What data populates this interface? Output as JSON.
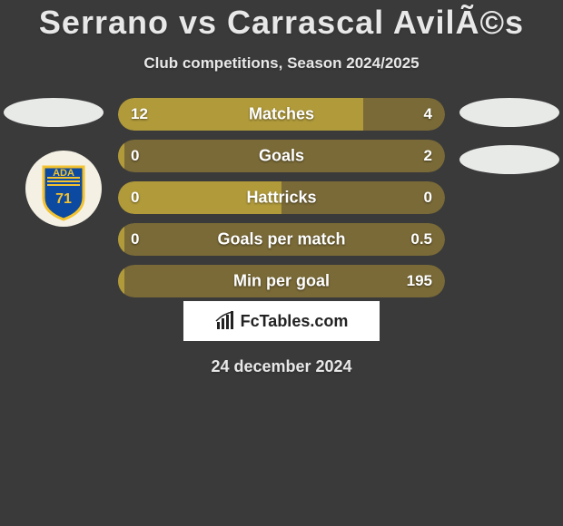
{
  "title": "Serrano vs Carrascal AvilÃ©s",
  "subtitle": "Club competitions, Season 2024/2025",
  "date": "24 december 2024",
  "branding": "FcTables.com",
  "colors": {
    "background": "#3a3a3a",
    "bar_bg": "#7a6a37",
    "bar_fill": "#b09a3a",
    "text": "#e8e8e8",
    "value_text": "#ffffff",
    "ellipse": "#e8eae8"
  },
  "team_logo": {
    "name": "ada-logo",
    "circle_fill": "#f4f0e4",
    "shield_fill": "#0b4aa0",
    "shield_stroke": "#f2c230",
    "text": "ADA",
    "text2": "71"
  },
  "stats": [
    {
      "label": "Matches",
      "left_value": "12",
      "right_value": "4",
      "left_pct": 75,
      "right_pct": 25
    },
    {
      "label": "Goals",
      "left_value": "0",
      "right_value": "2",
      "left_pct": 2,
      "right_pct": 98
    },
    {
      "label": "Hattricks",
      "left_value": "0",
      "right_value": "0",
      "left_pct": 50,
      "right_pct": 50
    },
    {
      "label": "Goals per match",
      "left_value": "0",
      "right_value": "0.5",
      "left_pct": 2,
      "right_pct": 98
    },
    {
      "label": "Min per goal",
      "left_value": "",
      "right_value": "195",
      "left_pct": 2,
      "right_pct": 98
    }
  ]
}
